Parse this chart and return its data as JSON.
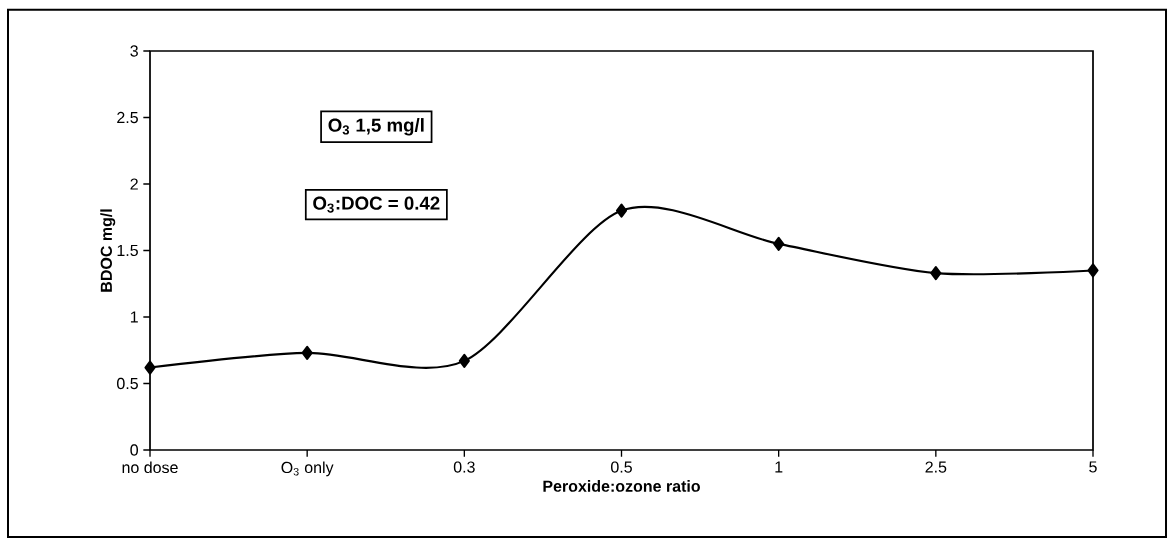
{
  "chart_data": {
    "type": "line",
    "xlabel": "Peroxide:ozone ratio",
    "ylabel": "BDOC mg/l",
    "categories": [
      "no dose",
      "O$_{3}$ only",
      "0.3",
      "0.5",
      "1",
      "2.5",
      "5"
    ],
    "series": [
      {
        "color": "#000000",
        "values": [
          0.62,
          0.73,
          0.67,
          1.8,
          1.55,
          1.33,
          1.35
        ]
      }
    ],
    "ylim": [
      0,
      3
    ],
    "yticks": [
      0,
      0.5,
      1,
      1.5,
      2,
      2.5,
      3
    ],
    "marker": "diamond",
    "line_style": "solid",
    "annotations": [
      "O$_{3}$ 1,5 mg/l",
      "O$_{3}$:DOC = 0.42"
    ]
  }
}
